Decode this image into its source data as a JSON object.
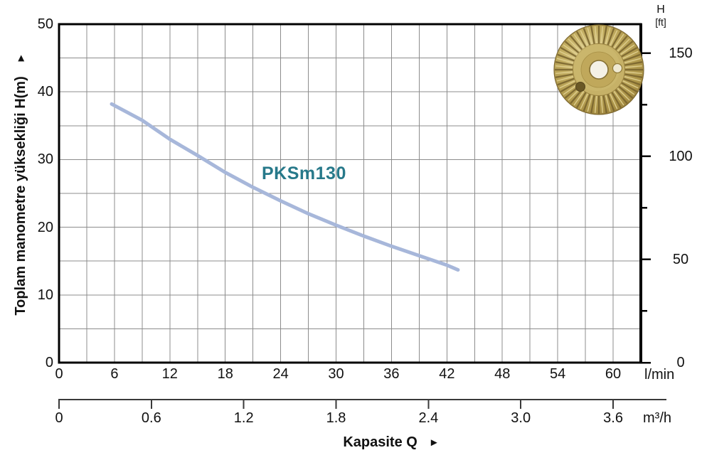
{
  "page": {
    "background": "#ffffff"
  },
  "colors": {
    "grid": "#8c8c8c",
    "plot_border": "#000000",
    "secondary_axis": "#3a3a3a",
    "curve": "#a7b7da",
    "series_label": "#27798a",
    "text": "#111111",
    "impeller_gold_light": "#e3d394",
    "impeller_gold_mid": "#c3ae62",
    "impeller_gold_dark": "#77622c"
  },
  "chart_data": {
    "type": "line",
    "title": "",
    "x_title": {
      "label": "Kapasite Q",
      "arrow": "►"
    },
    "x_axis_lmin": {
      "unit": "l/min",
      "range": [
        0,
        63
      ],
      "minor_grid_step": 3,
      "ticks": [
        0,
        6,
        12,
        18,
        24,
        30,
        36,
        42,
        48,
        54,
        60
      ]
    },
    "x_axis_m3h": {
      "unit": "m³/h",
      "ticks": [
        "0",
        "0.6",
        "1.2",
        "1.8",
        "2.4",
        "3.0",
        "3.6"
      ],
      "lmin_per_m3h": 16.6667
    },
    "y_axis_m": {
      "title": "Toplam manometre yüksekliği H(m)",
      "arrow": "►",
      "range": [
        0,
        50
      ],
      "grid_step": 5,
      "ticks": [
        0,
        10,
        20,
        30,
        40,
        50
      ]
    },
    "y_axis_ft": {
      "title_line1": "H",
      "title_line2": "[ft]",
      "ticks": [
        0,
        50,
        100,
        150
      ],
      "minor_ticks": [
        25,
        75,
        125
      ],
      "m_per_ft": 0.3048
    },
    "series": [
      {
        "name": "PKSm130",
        "color": "#a7b7da",
        "label_color": "#27798a",
        "points_lmin_m": [
          [
            5.7,
            38.2
          ],
          [
            9,
            35.8
          ],
          [
            12,
            33.0
          ],
          [
            15,
            30.6
          ],
          [
            18,
            28.1
          ],
          [
            21,
            25.9
          ],
          [
            24,
            23.9
          ],
          [
            27,
            22.0
          ],
          [
            30,
            20.3
          ],
          [
            33,
            18.7
          ],
          [
            36,
            17.2
          ],
          [
            39,
            15.8
          ],
          [
            42,
            14.4
          ],
          [
            43.2,
            13.7
          ]
        ]
      }
    ],
    "legend": {
      "position": "none"
    },
    "grid_on": true
  },
  "images": {
    "impeller": {
      "name": "brass-impeller-photo",
      "description": "gold pump impeller"
    }
  }
}
